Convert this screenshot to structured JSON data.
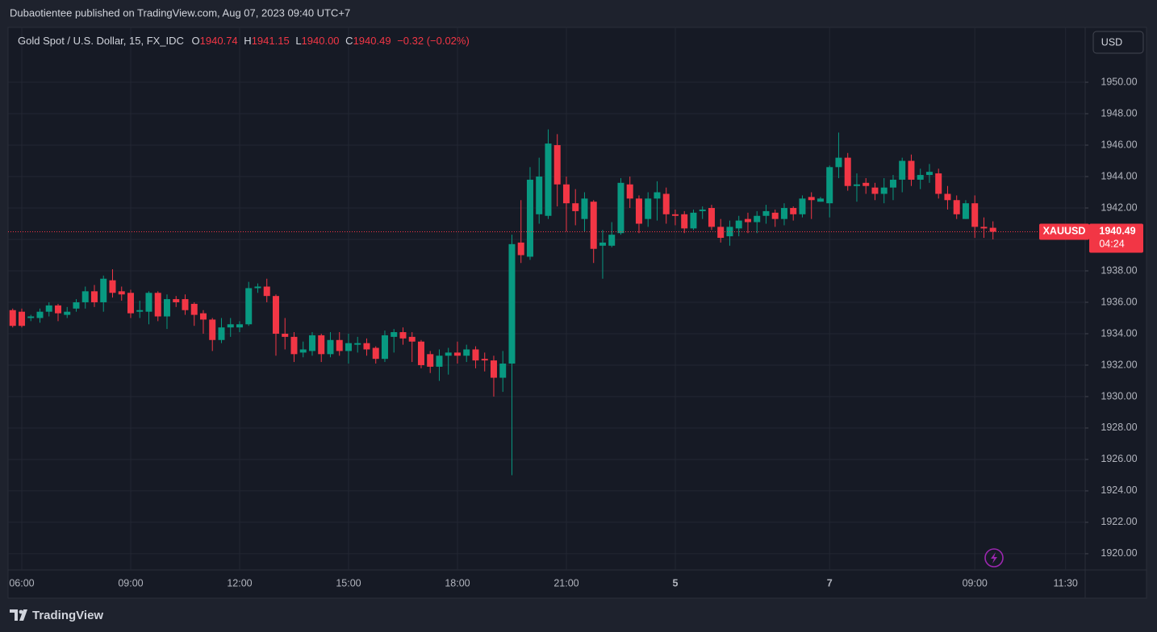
{
  "header": "Dubaotientee published on TradingView.com, Aug 07, 2023 09:40 UTC+7",
  "footer": "TradingView",
  "currency": "USD",
  "legend": {
    "symbol": "Gold Spot / U.S. Dollar, 15, FX_IDC",
    "o_label": "O",
    "o": "1940.74",
    "h_label": "H",
    "h": "1941.15",
    "l_label": "L",
    "l": "1940.00",
    "c_label": "C",
    "c": "1940.49",
    "change": "−0.32 (−0.02%)"
  },
  "price_tag": {
    "symbol": "XAUUSD",
    "price": "1940.49",
    "countdown": "04:24"
  },
  "chart_data": {
    "type": "candlestick",
    "up_color": "#089981",
    "down_color": "#f23645",
    "grid": true,
    "ylim": [
      1918.97,
      1953.49
    ],
    "yticks": [
      {
        "value": 1920,
        "label": "1920.00"
      },
      {
        "value": 1922,
        "label": "1922.00"
      },
      {
        "value": 1924,
        "label": "1924.00"
      },
      {
        "value": 1926,
        "label": "1926.00"
      },
      {
        "value": 1928,
        "label": "1928.00"
      },
      {
        "value": 1930,
        "label": "1930.00"
      },
      {
        "value": 1932,
        "label": "1932.00"
      },
      {
        "value": 1934,
        "label": "1934.00"
      },
      {
        "value": 1936,
        "label": "1936.00"
      },
      {
        "value": 1938,
        "label": "1938.00"
      },
      {
        "value": 1940,
        "label": "1940.00"
      },
      {
        "value": 1942,
        "label": "1942.00"
      },
      {
        "value": 1944,
        "label": "1944.00"
      },
      {
        "value": 1946,
        "label": "1946.00"
      },
      {
        "value": 1948,
        "label": "1948.00"
      },
      {
        "value": 1950,
        "label": "1950.00"
      }
    ],
    "xlim": [
      -0.51,
      118.16
    ],
    "xticks": [
      {
        "value": 1,
        "label": "06:00"
      },
      {
        "value": 13,
        "label": "09:00"
      },
      {
        "value": 25,
        "label": "12:00"
      },
      {
        "value": 37,
        "label": "15:00"
      },
      {
        "value": 49,
        "label": "18:00"
      },
      {
        "value": 61,
        "label": "21:00"
      },
      {
        "value": 73,
        "label": "5"
      },
      {
        "value": 90,
        "label": "7"
      },
      {
        "value": 106,
        "label": "09:00"
      },
      {
        "value": 116,
        "label": "11:30"
      }
    ],
    "open": [
      1935.5,
      1935.4,
      1935.0,
      1935.0,
      1935.4,
      1935.8,
      1935.2,
      1935.6,
      1936.0,
      1936.7,
      1936.0,
      1937.4,
      1936.7,
      1936.6,
      1935.4,
      1935.4,
      1936.6,
      1935.1,
      1936.2,
      1936.2,
      1935.9,
      1935.3,
      1934.9,
      1933.6,
      1934.4,
      1934.4,
      1934.6,
      1936.9,
      1937.0,
      1936.4,
      1934.0,
      1933.8,
      1932.8,
      1932.9,
      1933.9,
      1932.7,
      1933.6,
      1932.9,
      1933.3,
      1933.4,
      1933.1,
      1932.4,
      1933.8,
      1934.1,
      1933.8,
      1933.5,
      1932.7,
      1931.9,
      1932.6,
      1932.8,
      1932.6,
      1933.0,
      1932.4,
      1932.3,
      1931.2,
      1932.1,
      1939.8,
      1938.9,
      1941.6,
      1941.5,
      1946.0,
      1943.5,
      1942.3,
      1941.3,
      1942.4,
      1939.6,
      1939.6,
      1940.4,
      1943.5,
      1942.6,
      1941.3,
      1942.6,
      1942.9,
      1941.6,
      1941.6,
      1940.7,
      1941.8,
      1942.0,
      1940.8,
      1940.2,
      1940.7,
      1941.3,
      1941.1,
      1941.5,
      1941.7,
      1941.3,
      1942.0,
      1941.6,
      1942.7,
      1942.4,
      1942.3,
      1944.6,
      1945.2,
      1943.4,
      1943.6,
      1943.3,
      1942.9,
      1943.3,
      1943.8,
      1945.0,
      1943.8,
      1944.1,
      1944.2,
      1942.9,
      1942.5,
      1941.3,
      1942.3,
      1940.8,
      1940.74
    ],
    "high": [
      1935.6,
      1935.6,
      1935.2,
      1935.6,
      1936.0,
      1935.9,
      1935.7,
      1936.2,
      1937.0,
      1937.1,
      1937.7,
      1938.1,
      1937.0,
      1936.8,
      1936.1,
      1936.7,
      1936.7,
      1936.5,
      1936.4,
      1936.5,
      1936.0,
      1935.5,
      1935.0,
      1935.0,
      1935.0,
      1934.8,
      1937.3,
      1937.2,
      1937.5,
      1936.5,
      1935.0,
      1934.1,
      1933.5,
      1934.1,
      1934.0,
      1934.1,
      1934.1,
      1934.0,
      1933.8,
      1933.7,
      1933.2,
      1934.2,
      1934.3,
      1934.4,
      1934.1,
      1933.6,
      1932.9,
      1933.0,
      1933.1,
      1933.5,
      1933.3,
      1933.2,
      1932.8,
      1932.6,
      1932.9,
      1940.3,
      1942.5,
      1944.6,
      1945.2,
      1947.0,
      1946.7,
      1944.0,
      1943.2,
      1943.0,
      1942.5,
      1940.6,
      1941.1,
      1943.9,
      1944.0,
      1942.8,
      1943.0,
      1943.7,
      1943.3,
      1941.9,
      1941.8,
      1941.9,
      1942.1,
      1942.2,
      1941.3,
      1941.2,
      1941.5,
      1941.7,
      1941.8,
      1942.2,
      1941.9,
      1942.3,
      1942.1,
      1942.8,
      1943.0,
      1942.7,
      1944.7,
      1946.8,
      1945.5,
      1944.2,
      1943.9,
      1943.6,
      1943.9,
      1944.1,
      1945.2,
      1945.4,
      1944.5,
      1944.8,
      1944.5,
      1943.4,
      1942.8,
      1942.5,
      1942.8,
      1941.4,
      1941.15
    ],
    "low": [
      1934.4,
      1934.4,
      1934.8,
      1934.7,
      1935.1,
      1934.8,
      1935.0,
      1935.4,
      1935.6,
      1935.7,
      1935.4,
      1936.3,
      1936.1,
      1935.0,
      1935.0,
      1934.6,
      1934.8,
      1934.3,
      1935.7,
      1935.2,
      1934.5,
      1934.0,
      1932.9,
      1933.4,
      1933.8,
      1934.1,
      1934.5,
      1936.6,
      1936.0,
      1932.6,
      1933.0,
      1932.2,
      1932.5,
      1932.6,
      1932.2,
      1932.5,
      1932.6,
      1932.1,
      1932.8,
      1932.6,
      1932.1,
      1932.2,
      1932.8,
      1933.3,
      1932.2,
      1931.8,
      1931.5,
      1931.0,
      1931.4,
      1932.1,
      1932.2,
      1931.8,
      1931.6,
      1930.0,
      1930.3,
      1925.0,
      1938.5,
      1938.7,
      1941.0,
      1941.3,
      1942.1,
      1940.5,
      1940.9,
      1940.5,
      1938.5,
      1937.5,
      1939.5,
      1940.3,
      1942.0,
      1940.4,
      1940.8,
      1941.2,
      1941.0,
      1940.9,
      1940.4,
      1940.6,
      1941.3,
      1940.6,
      1939.8,
      1939.6,
      1940.2,
      1940.4,
      1940.4,
      1941.0,
      1940.8,
      1940.9,
      1941.2,
      1941.4,
      1941.3,
      1942.4,
      1941.4,
      1943.9,
      1943.1,
      1942.4,
      1942.9,
      1942.5,
      1942.3,
      1942.5,
      1943.0,
      1943.4,
      1943.2,
      1943.6,
      1942.6,
      1941.9,
      1941.3,
      1941.3,
      1940.1,
      1940.1,
      1940.0
    ],
    "close": [
      1934.5,
      1934.5,
      1935.1,
      1935.4,
      1935.8,
      1935.3,
      1935.4,
      1936.0,
      1936.7,
      1936.0,
      1937.5,
      1936.6,
      1936.5,
      1935.3,
      1935.5,
      1936.6,
      1935.1,
      1936.2,
      1936.0,
      1935.5,
      1935.2,
      1934.9,
      1933.6,
      1934.4,
      1934.6,
      1934.6,
      1936.9,
      1937.0,
      1936.4,
      1934.0,
      1933.8,
      1932.7,
      1933.0,
      1933.9,
      1932.7,
      1933.6,
      1932.9,
      1933.4,
      1933.4,
      1933.0,
      1932.4,
      1933.9,
      1934.1,
      1933.7,
      1933.5,
      1932.0,
      1931.9,
      1932.6,
      1932.8,
      1932.6,
      1933.0,
      1932.3,
      1932.3,
      1931.2,
      1932.1,
      1939.7,
      1939.0,
      1943.8,
      1944.0,
      1946.1,
      1943.5,
      1942.3,
      1941.8,
      1942.6,
      1939.4,
      1939.8,
      1940.3,
      1943.6,
      1942.6,
      1941.0,
      1942.6,
      1943.0,
      1941.6,
      1941.5,
      1940.7,
      1941.7,
      1941.9,
      1940.8,
      1940.1,
      1940.8,
      1941.2,
      1941.1,
      1941.5,
      1941.8,
      1941.3,
      1942.0,
      1941.6,
      1942.6,
      1942.5,
      1942.6,
      1944.6,
      1945.2,
      1943.4,
      1943.5,
      1943.4,
      1942.9,
      1943.3,
      1943.8,
      1945.0,
      1943.8,
      1944.1,
      1944.3,
      1942.9,
      1942.5,
      1941.6,
      1942.3,
      1940.8,
      1940.7,
      1940.49
    ]
  }
}
